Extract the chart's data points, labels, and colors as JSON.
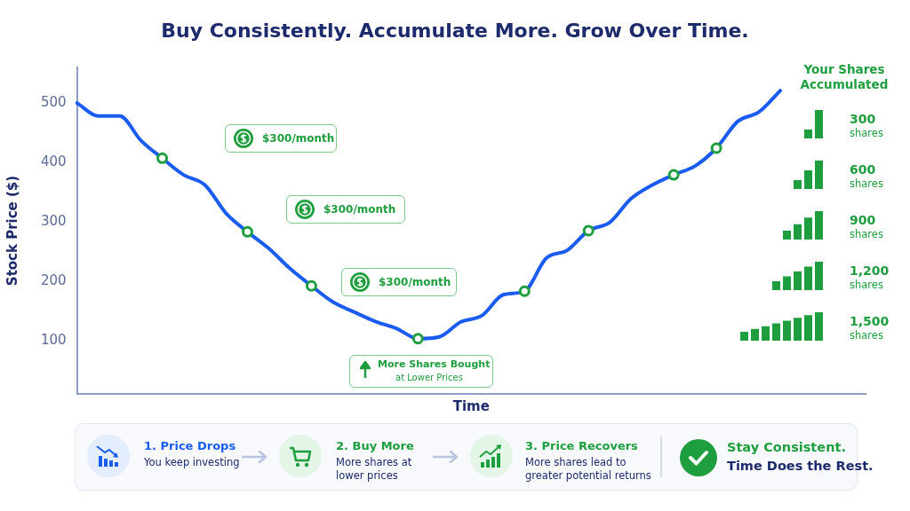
{
  "chart_data": {
    "type": "line",
    "title": "Buy Consistently. Accumulate More. Grow Over Time.",
    "xlabel": "Time",
    "ylabel": "Stock Price ($)",
    "categories": [
      null,
      null,
      null,
      null,
      null,
      null,
      null,
      null,
      null,
      null,
      null,
      null,
      null,
      null,
      null,
      null,
      null,
      null,
      null,
      null,
      null,
      null,
      null,
      null,
      null,
      null,
      null,
      null,
      null,
      null,
      null,
      null,
      null,
      null,
      null,
      null,
      null,
      null
    ],
    "ylim": [
      10,
      560
    ],
    "yticks": [
      100,
      200,
      300,
      400,
      500
    ],
    "grid": false,
    "legend": false,
    "tick_labels": "y",
    "series": [
      {
        "color": "#1b5cf0",
        "marker": "none",
        "values": [
          500,
          478,
          478,
          437,
          407,
          379,
          362,
          314,
          283,
          255,
          221,
          192,
          165,
          148,
          132,
          120,
          103,
          106,
          131,
          142,
          177,
          183,
          238,
          252,
          285,
          299,
          339,
          362,
          379,
          394,
          424,
          469,
          485,
          521,
          null,
          null,
          null,
          null
        ]
      },
      {
        "type": "scatter",
        "color": "#1e9e3e",
        "marker": "circle",
        "values": [
          null,
          null,
          null,
          null,
          407,
          null,
          null,
          null,
          283,
          null,
          null,
          192,
          null,
          null,
          null,
          null,
          103,
          null,
          null,
          null,
          null,
          183,
          null,
          null,
          285,
          null,
          null,
          null,
          379,
          null,
          424,
          null,
          null,
          null,
          null,
          null,
          null,
          null
        ]
      }
    ],
    "annotations": [
      "$300/month",
      "$300/month",
      "$300/month",
      "More Shares Bought",
      "at Lower Prices",
      "Your Shares Accumulated",
      "300",
      "shares",
      "600",
      "shares",
      "900",
      "shares",
      "1,200",
      "shares",
      "1,500",
      "shares",
      "1. Price Drops",
      "You keep investing",
      "2. Buy More",
      "More shares at lower prices",
      "3. Price Recovers",
      "More shares lead to greater potential returns",
      "Stay Consistent.",
      "Time Does the Rest."
    ]
  }
}
